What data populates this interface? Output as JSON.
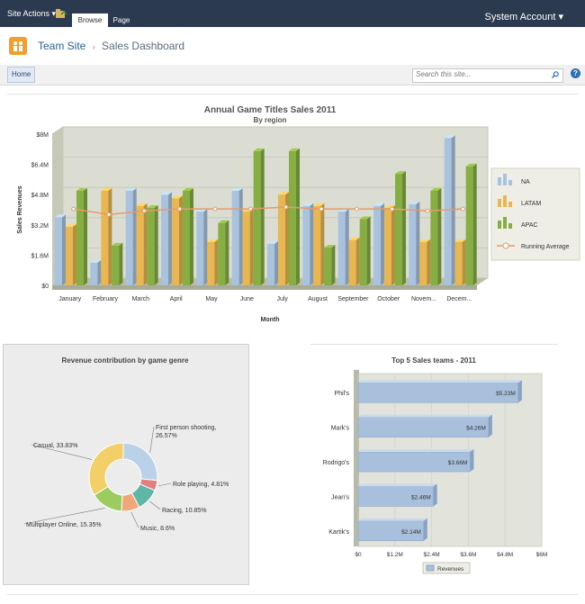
{
  "topbar": {
    "site_actions": "Site Actions",
    "tabs": [
      "Browse",
      "Page"
    ],
    "account": "System Account"
  },
  "breadcrumb": {
    "site": "Team Site",
    "separator": "›",
    "page": "Sales Dashboard"
  },
  "nav": {
    "home": "Home",
    "search_placeholder": "Search this site...",
    "help": "?"
  },
  "chart_data": [
    {
      "type": "bar",
      "title": "Annual Game Titles Sales 2011",
      "subtitle": "By region",
      "xlabel": "Month",
      "ylabel": "Sales Revenues",
      "categories": [
        "January",
        "February",
        "March",
        "April",
        "May",
        "June",
        "July",
        "August",
        "September",
        "October",
        "Novem...",
        "Decem..."
      ],
      "yticks": [
        "$0",
        "$1.6M",
        "$3.2M",
        "$4.8M",
        "$6.4M",
        "$8M"
      ],
      "ylim": [
        0,
        8
      ],
      "series": [
        {
          "name": "NA",
          "values": [
            3.6,
            1.2,
            5.0,
            4.8,
            3.9,
            5.0,
            2.2,
            4.2,
            3.9,
            4.2,
            4.3,
            7.8
          ],
          "color": "#a9c3df"
        },
        {
          "name": "LATAM",
          "values": [
            3.1,
            5.0,
            4.2,
            4.6,
            2.3,
            3.9,
            4.8,
            4.2,
            2.4,
            4.1,
            2.3,
            2.3
          ],
          "color": "#e8b752"
        },
        {
          "name": "APAC",
          "values": [
            5.0,
            2.1,
            4.1,
            5.0,
            3.3,
            7.1,
            7.1,
            2.0,
            3.5,
            5.9,
            5.0,
            6.3
          ],
          "color": "#86ae42"
        }
      ],
      "line": {
        "name": "Running Average",
        "values": [
          3.9,
          3.6,
          3.8,
          3.9,
          3.9,
          3.9,
          4.0,
          3.9,
          3.9,
          3.9,
          3.8,
          3.9
        ],
        "color": "#e59b6c"
      },
      "legend": [
        "NA",
        "LATAM",
        "APAC",
        "Running Average"
      ]
    },
    {
      "type": "pie",
      "title": "Revenue contribution by game genre",
      "slices": [
        {
          "label": "First person shooting, 26.57%",
          "value": 26.57,
          "color": "#b9d2e8"
        },
        {
          "label": "Role playing, 4.81%",
          "value": 4.81,
          "color": "#e17f7f"
        },
        {
          "label": "Racing, 10.85%",
          "value": 10.85,
          "color": "#5fb5a6"
        },
        {
          "label": "Music, 8.6%",
          "value": 8.6,
          "color": "#f0a87b"
        },
        {
          "label": "Multiplayer Online, 15.35%",
          "value": 15.35,
          "color": "#9ccc5f"
        },
        {
          "label": "Casual, 33.83%",
          "value": 33.83,
          "color": "#f2cf67"
        }
      ]
    },
    {
      "type": "bar",
      "orientation": "horizontal",
      "title": "Top 5 Sales teams - 2011",
      "categories": [
        "Phil's",
        "Mark's",
        "Rodrigo's",
        "Jean's",
        "Kartik's"
      ],
      "values": [
        5.23,
        4.26,
        3.66,
        2.46,
        2.14
      ],
      "value_labels": [
        "$5.23M",
        "$4.26M",
        "$3.66M",
        "$2.46M",
        "$2.14M"
      ],
      "xticks": [
        "$0",
        "$1.2M",
        "$2.4M",
        "$3.6M",
        "$4.8M",
        "$6M"
      ],
      "xlim": [
        0,
        6
      ],
      "legend": [
        "Revenues"
      ]
    }
  ],
  "colors": {
    "topbar": "#2b3a4f",
    "link": "#2b5f96",
    "accent": "#f0a030"
  }
}
